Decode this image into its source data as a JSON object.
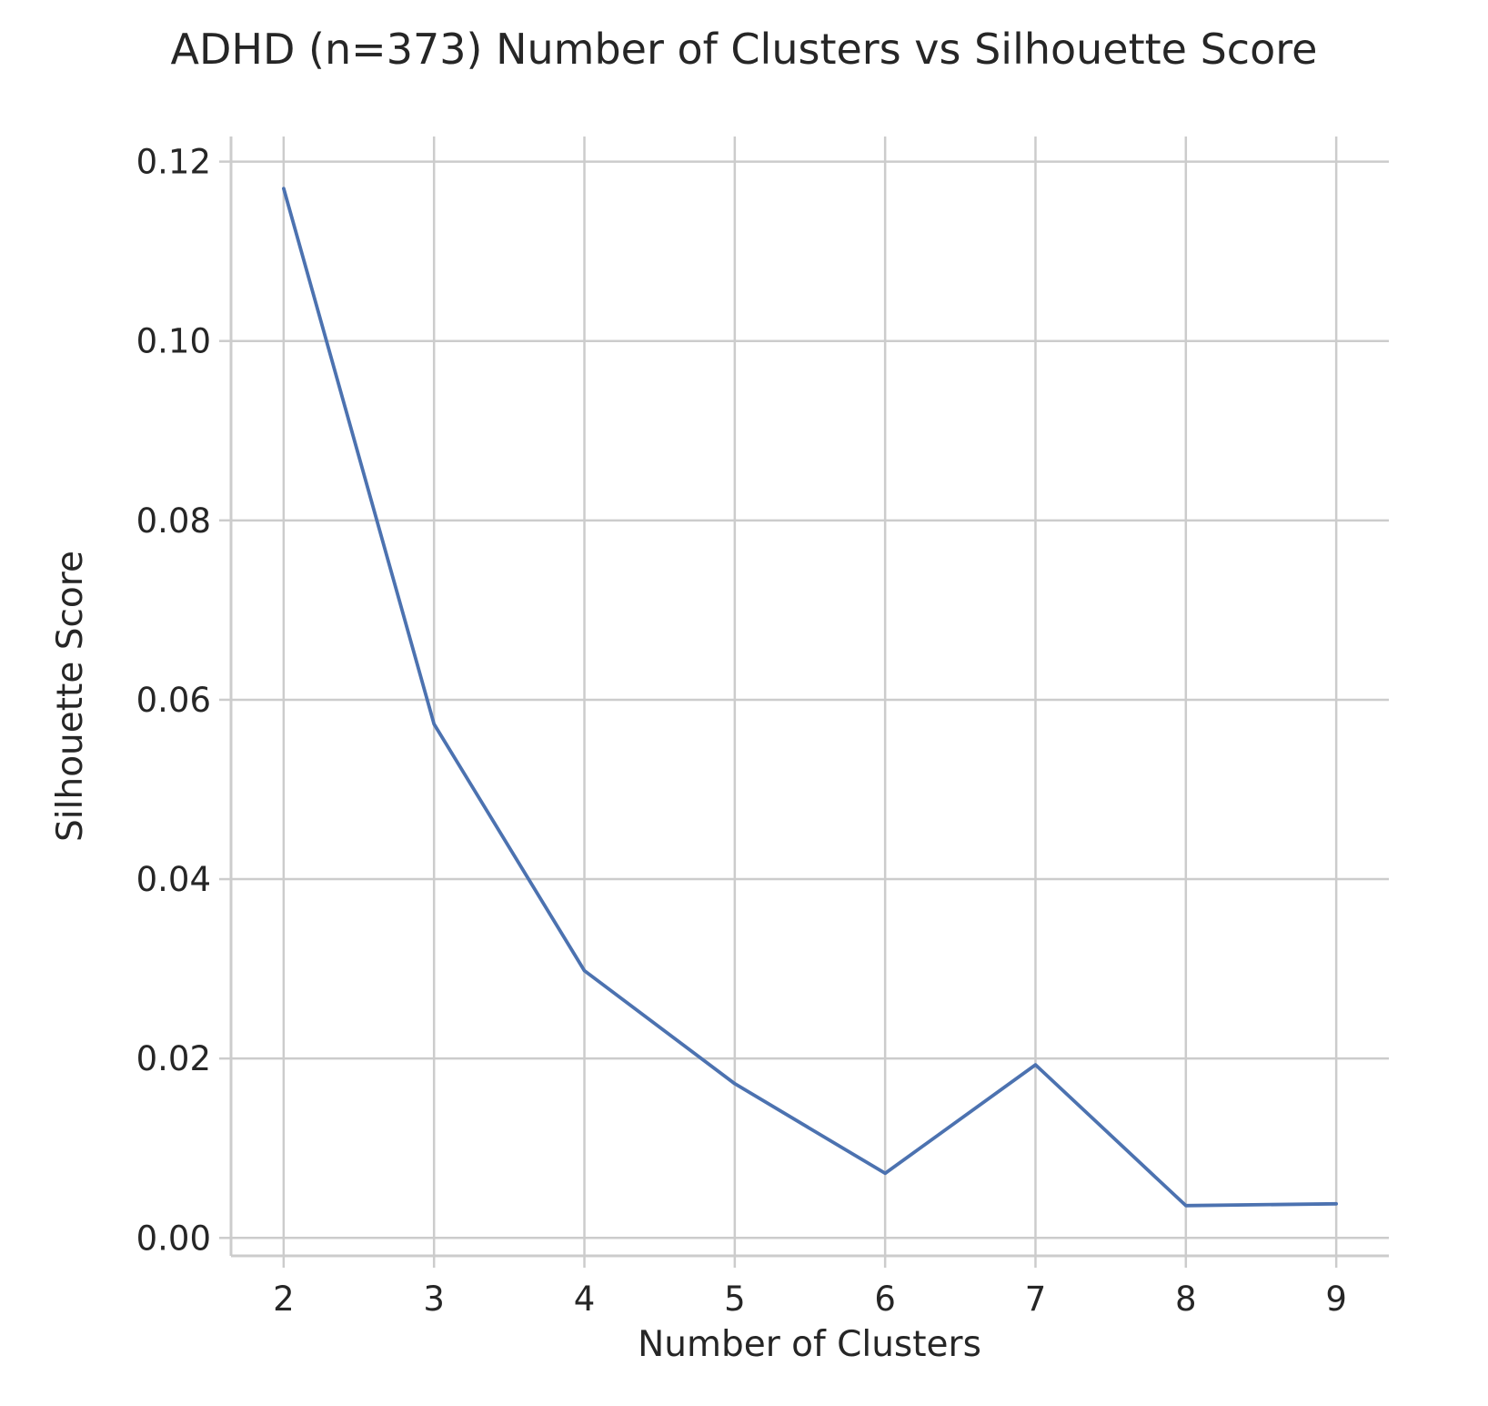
{
  "chart_data": {
    "type": "line",
    "title": "ADHD (n=373) Number of Clusters vs Silhouette Score",
    "xlabel": "Number of Clusters",
    "ylabel": "Silhouette Score",
    "x": [
      2,
      3,
      4,
      5,
      6,
      7,
      8,
      9
    ],
    "series": [
      {
        "values": [
          0.117,
          0.0573,
          0.0298,
          0.0172,
          0.0072,
          0.0193,
          0.0036,
          0.0038
        ],
        "color": "#4c72b0"
      }
    ],
    "x_ticks": [
      "2",
      "3",
      "4",
      "5",
      "6",
      "7",
      "8",
      "9"
    ],
    "y_ticks": [
      "0.00",
      "0.02",
      "0.04",
      "0.06",
      "0.08",
      "0.10",
      "0.12"
    ],
    "y_tick_values": [
      0,
      0.02,
      0.04,
      0.06,
      0.08,
      0.1,
      0.12
    ],
    "xlim": [
      1.65,
      9.35
    ],
    "ylim": [
      -0.002,
      0.1228
    ],
    "grid": true,
    "colors": {
      "grid": "#cccccc",
      "axis": "#cccccc",
      "text": "#262626",
      "line": "#4c72b0"
    }
  }
}
